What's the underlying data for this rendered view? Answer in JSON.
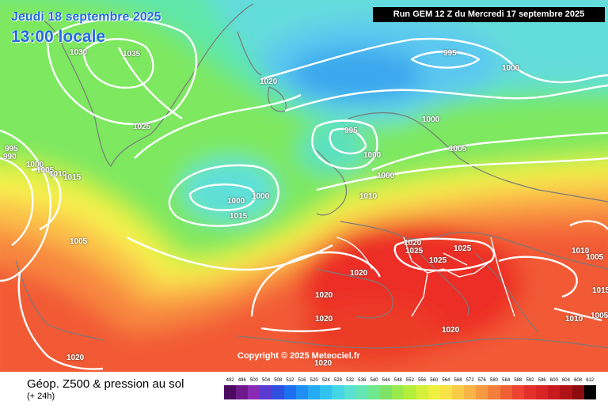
{
  "header": {
    "date": "Jeudi 18 septembre 2025",
    "time": "13:00 locale",
    "run": "Run GEM 12 Z du Mercredi 17 septembre 2025"
  },
  "footer": {
    "copyright": "Copyright © 2025 Meteociel.fr"
  },
  "legend": {
    "title": "Géop. Z500 & pression au sol",
    "subtitle": "(+ 24h)",
    "ticks": [
      "492",
      "496",
      "500",
      "504",
      "508",
      "512",
      "516",
      "520",
      "524",
      "528",
      "532",
      "536",
      "540",
      "544",
      "548",
      "552",
      "556",
      "560",
      "564",
      "568",
      "572",
      "576",
      "580",
      "584",
      "588",
      "592",
      "596",
      "600",
      "604",
      "608",
      "612"
    ],
    "colors": [
      "#4b0b5f",
      "#6e1a8c",
      "#8a2bb5",
      "#5a3bd0",
      "#2f4fe0",
      "#1e6ff0",
      "#1f8ff5",
      "#25aaf5",
      "#30c3f0",
      "#44d6e6",
      "#59e2d2",
      "#66e6b4",
      "#6ee990",
      "#7ee26a",
      "#9aea4e",
      "#b6ee3c",
      "#d4f03a",
      "#eef040",
      "#f8e246",
      "#f9cc48",
      "#f9b446",
      "#f89a42",
      "#f47e3c",
      "#f06036",
      "#ec4430",
      "#e4302a",
      "#d82424",
      "#c81a1e",
      "#b01218",
      "#8c0c10",
      "#000000"
    ]
  },
  "isobars": [
    "1030",
    "1035",
    "1020",
    "995",
    "1000",
    "1025",
    "1000",
    "995",
    "1005",
    "995",
    "990",
    "1000",
    "1000",
    "1005",
    "1010",
    "1015",
    "1000",
    "1000",
    "1010",
    "1000",
    "1015",
    "1005",
    "1020",
    "1025",
    "1025",
    "1025",
    "1010",
    "1005",
    "1020",
    "1015",
    "1020",
    "1020",
    "1010",
    "1005",
    "1020",
    "1020",
    "1020"
  ]
}
